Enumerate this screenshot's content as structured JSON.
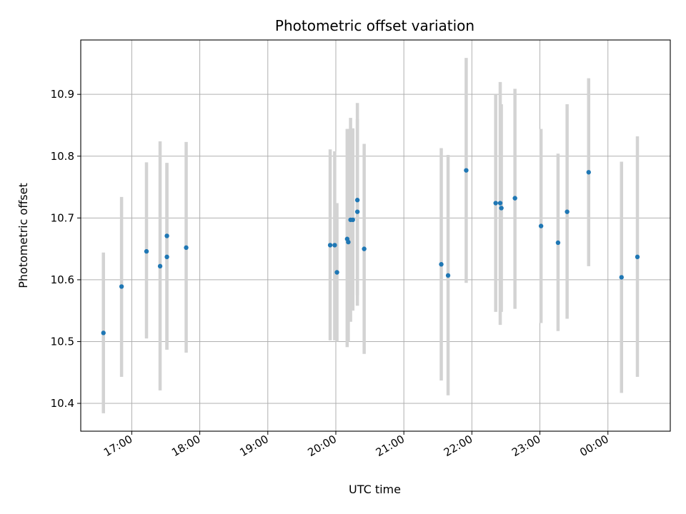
{
  "chart_data": {
    "type": "scatter",
    "title": "Photometric offset variation",
    "xlabel": "UTC time",
    "ylabel": "Photometric offset",
    "x_unit": "UTC time (HH:MM, day 1 evening into day 2)",
    "xlim": [
      "16:15",
      "00:55"
    ],
    "ylim": [
      10.355,
      10.988
    ],
    "x_ticks": [
      "17:00",
      "18:00",
      "19:00",
      "20:00",
      "21:00",
      "22:00",
      "23:00",
      "00:00"
    ],
    "y_ticks": [
      10.4,
      10.5,
      10.6,
      10.7,
      10.8,
      10.9
    ],
    "grid": true,
    "marker_color": "#1f77b4",
    "errorbar_color": "#d3d3d3",
    "points": [
      {
        "t": "16:35",
        "y": 10.514,
        "lo": 10.384,
        "hi": 10.644
      },
      {
        "t": "16:51",
        "y": 10.589,
        "lo": 10.443,
        "hi": 10.734
      },
      {
        "t": "17:13",
        "y": 10.646,
        "lo": 10.505,
        "hi": 10.79
      },
      {
        "t": "17:25",
        "y": 10.622,
        "lo": 10.421,
        "hi": 10.824
      },
      {
        "t": "17:31",
        "y": 10.671,
        "lo": 10.487,
        "hi": 10.789
      },
      {
        "t": "17:31",
        "y": 10.637,
        "lo": 10.487,
        "hi": 10.789
      },
      {
        "t": "17:48",
        "y": 10.652,
        "lo": 10.482,
        "hi": 10.823
      },
      {
        "t": "19:55",
        "y": 10.656,
        "lo": 10.502,
        "hi": 10.811
      },
      {
        "t": "19:59",
        "y": 10.656,
        "lo": 10.502,
        "hi": 10.808
      },
      {
        "t": "20:01",
        "y": 10.612,
        "lo": 10.5,
        "hi": 10.724
      },
      {
        "t": "20:10",
        "y": 10.666,
        "lo": 10.491,
        "hi": 10.844
      },
      {
        "t": "20:11",
        "y": 10.661,
        "lo": 10.5,
        "hi": 10.844
      },
      {
        "t": "20:13",
        "y": 10.697,
        "lo": 10.532,
        "hi": 10.862
      },
      {
        "t": "20:15",
        "y": 10.697,
        "lo": 10.55,
        "hi": 10.845
      },
      {
        "t": "20:19",
        "y": 10.729,
        "lo": 10.575,
        "hi": 10.886
      },
      {
        "t": "20:19",
        "y": 10.71,
        "lo": 10.558,
        "hi": 10.86
      },
      {
        "t": "20:25",
        "y": 10.65,
        "lo": 10.48,
        "hi": 10.82
      },
      {
        "t": "21:33",
        "y": 10.625,
        "lo": 10.437,
        "hi": 10.813
      },
      {
        "t": "21:39",
        "y": 10.607,
        "lo": 10.413,
        "hi": 10.802
      },
      {
        "t": "21:55",
        "y": 10.777,
        "lo": 10.595,
        "hi": 10.959
      },
      {
        "t": "22:21",
        "y": 10.724,
        "lo": 10.548,
        "hi": 10.9
      },
      {
        "t": "22:25",
        "y": 10.724,
        "lo": 10.527,
        "hi": 10.92
      },
      {
        "t": "22:26",
        "y": 10.716,
        "lo": 10.548,
        "hi": 10.884
      },
      {
        "t": "22:38",
        "y": 10.732,
        "lo": 10.553,
        "hi": 10.909
      },
      {
        "t": "23:01",
        "y": 10.687,
        "lo": 10.53,
        "hi": 10.844
      },
      {
        "t": "23:16",
        "y": 10.66,
        "lo": 10.517,
        "hi": 10.804
      },
      {
        "t": "23:24",
        "y": 10.71,
        "lo": 10.537,
        "hi": 10.884
      },
      {
        "t": "23:43",
        "y": 10.774,
        "lo": 10.622,
        "hi": 10.926
      },
      {
        "t": "00:12",
        "y": 10.604,
        "lo": 10.417,
        "hi": 10.791
      },
      {
        "t": "00:26",
        "y": 10.637,
        "lo": 10.443,
        "hi": 10.832
      }
    ]
  }
}
